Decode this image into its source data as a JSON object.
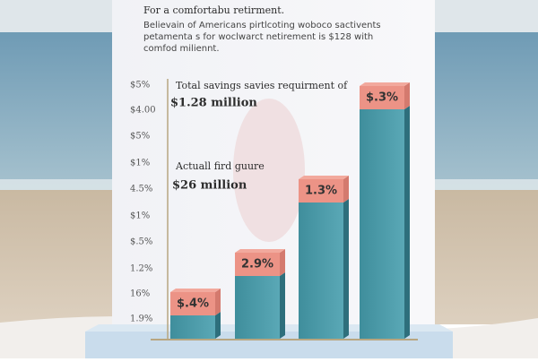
{
  "title": "For a comfortabu retirment.",
  "subtitle": [
    "Believain of Americans pirtlcoting woboco sactivents",
    "petamenta s for woclwarct netirement is $128 with",
    "comfod miliennt."
  ],
  "axis_labels": [
    "$5%",
    "$4.00",
    "$5%",
    "$1%",
    "4.5%",
    "$1%",
    "$.5%",
    "1.2%",
    "16%",
    "1.9%"
  ],
  "annotations": [
    {
      "text": "Total savings savies requirment of",
      "value": "$1.28 million"
    },
    {
      "text": "Actuall fird guure",
      "value": "$26 million"
    }
  ],
  "bars": [
    {
      "label": "$.4%"
    },
    {
      "label": "2.9%"
    },
    {
      "label": "1.3%"
    },
    {
      "label": "$.3%"
    }
  ]
}
